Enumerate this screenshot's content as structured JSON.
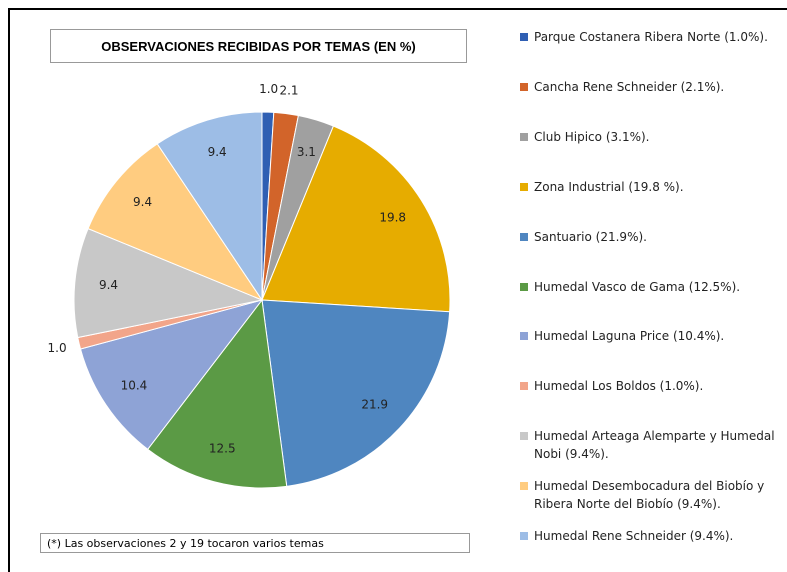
{
  "chart_data": {
    "type": "pie",
    "title": "OBSERVACIONES RECIBIDAS POR TEMAS (EN %)",
    "note": "(*)  Las observaciones 2 y 19 tocaron varios temas",
    "categories": [
      "Parque Costanera Ribera Norte (1.0%).",
      "Cancha Rene Schneider (2.1%).",
      "Club Hipico (3.1%).",
      "Zona Industrial (19.8 %).",
      "Santuario (21.9%).",
      "Humedal Vasco de Gama (12.5%).",
      "Humedal Laguna Price (10.4%).",
      "Humedal Los Boldos (1.0%).",
      "Humedal Arteaga Alemparte y Humedal Nobi (9.4%).",
      "Humedal Desembocadura del Biobío y Ribera Norte del Biobío (9.4%).",
      "Humedal Rene Schneider (9.4%)."
    ],
    "values": [
      1.0,
      2.1,
      3.1,
      19.8,
      21.9,
      12.5,
      10.4,
      1.0,
      9.4,
      9.4,
      9.4
    ],
    "value_labels": [
      "1.0",
      "2.1",
      "3.1",
      "19.8",
      "21.9",
      "12.5",
      "10.4",
      "1.0",
      "9.4",
      "9.4",
      "9.4"
    ],
    "colors": [
      "#2f5fb3",
      "#d2642a",
      "#a0a0a0",
      "#e6ac00",
      "#4f86c0",
      "#5b9a45",
      "#8ea3d6",
      "#f2a58a",
      "#c8c8c8",
      "#ffcc80",
      "#9dbde6"
    ]
  }
}
